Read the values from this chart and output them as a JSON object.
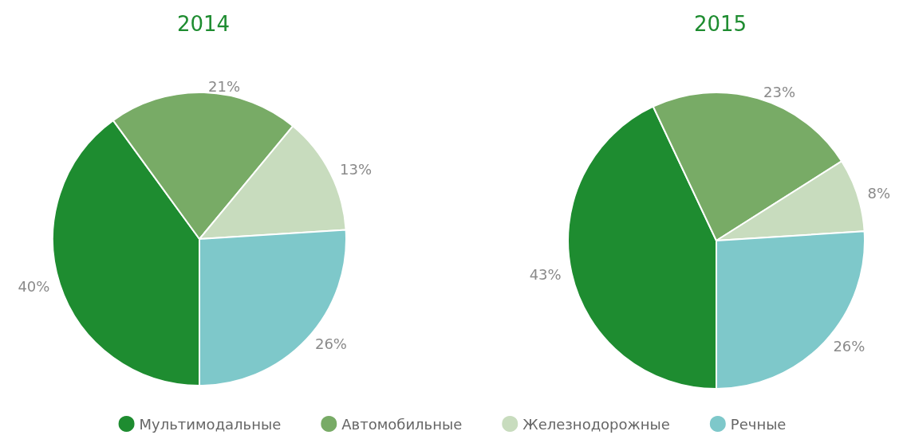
{
  "chart_data": {
    "type": "pie",
    "categories": [
      "Мультимодальные",
      "Автомобильные",
      "Железнодорожные",
      "Речные"
    ],
    "colors": [
      "#1e8c30",
      "#78ab66",
      "#c8dcbe",
      "#7ec8ca"
    ],
    "legend": "bottom",
    "series": [
      {
        "name": "2014",
        "values": [
          40,
          21,
          13,
          26
        ],
        "value_labels": [
          "40%",
          "21%",
          "13%",
          "26%"
        ]
      },
      {
        "name": "2015",
        "values": [
          43,
          23,
          8,
          26
        ],
        "value_labels": [
          "43%",
          "23%",
          "8%",
          "26%"
        ]
      }
    ]
  }
}
